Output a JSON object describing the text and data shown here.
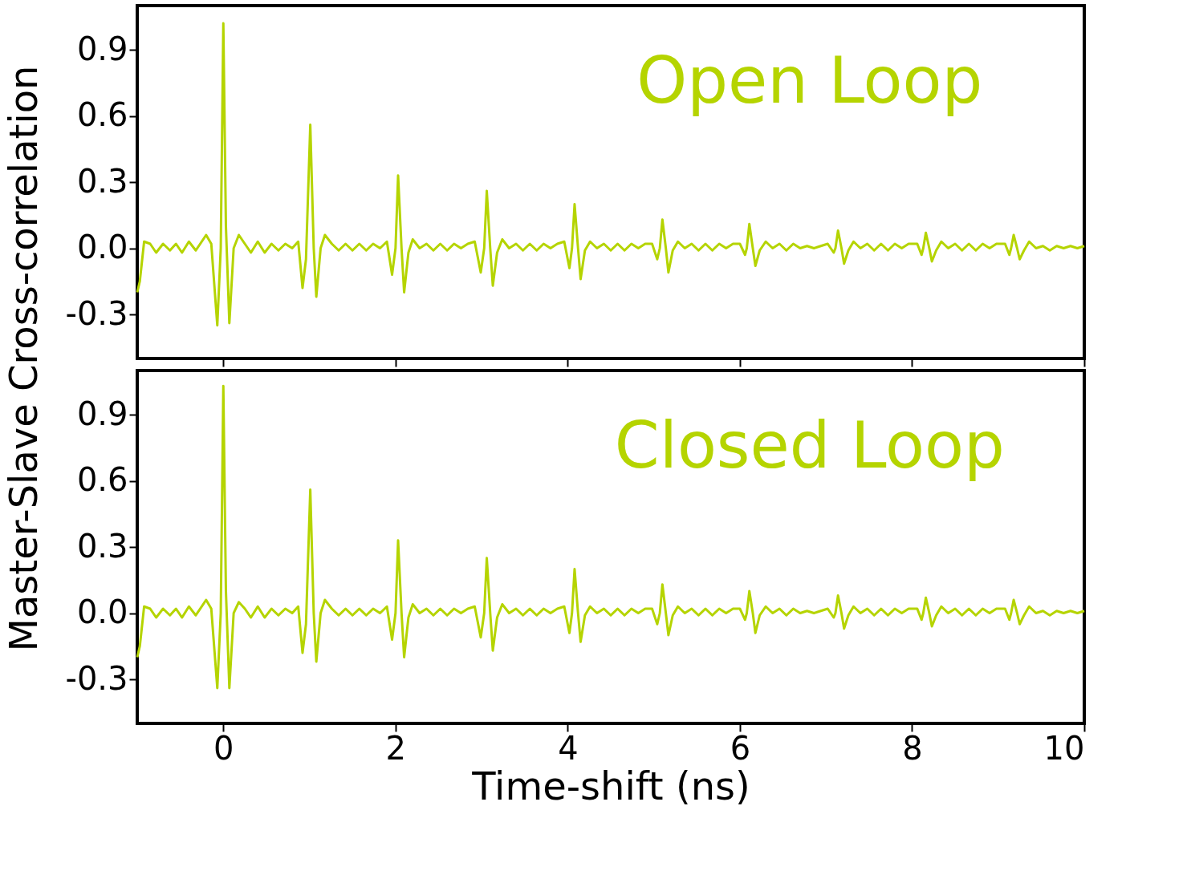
{
  "chart_data": [
    {
      "type": "line",
      "ylabel": "Master-Slave Cross-correlation",
      "annotations": [
        "Open Loop"
      ],
      "tick_labels": "y",
      "grid": false,
      "xlim": [
        -1,
        10
      ],
      "xticks": [
        0,
        2,
        4,
        6,
        8,
        10
      ],
      "ylim": [
        -0.5,
        1.1
      ],
      "yticks": [
        -0.3,
        {
          "value": 0,
          "label": "0.0"
        },
        0.3,
        0.6,
        0.9
      ],
      "x": [
        -1.0,
        -0.97,
        -0.92,
        -0.85,
        -0.78,
        -0.7,
        -0.62,
        -0.55,
        -0.48,
        -0.4,
        -0.32,
        -0.2,
        -0.14,
        -0.07,
        -0.03,
        0.0,
        0.03,
        0.07,
        0.12,
        0.18,
        0.25,
        0.32,
        0.4,
        0.48,
        0.56,
        0.64,
        0.72,
        0.8,
        0.87,
        0.92,
        0.96,
        1.01,
        1.05,
        1.08,
        1.13,
        1.18,
        1.26,
        1.34,
        1.42,
        1.5,
        1.58,
        1.66,
        1.74,
        1.82,
        1.9,
        1.96,
        2.0,
        2.03,
        2.07,
        2.1,
        2.15,
        2.2,
        2.28,
        2.36,
        2.44,
        2.52,
        2.6,
        2.68,
        2.76,
        2.84,
        2.92,
        2.99,
        3.03,
        3.06,
        3.1,
        3.13,
        3.18,
        3.24,
        3.32,
        3.4,
        3.48,
        3.56,
        3.64,
        3.72,
        3.8,
        3.88,
        3.96,
        4.02,
        4.05,
        4.08,
        4.12,
        4.15,
        4.2,
        4.26,
        4.34,
        4.42,
        4.5,
        4.58,
        4.66,
        4.74,
        4.82,
        4.9,
        4.98,
        5.04,
        5.07,
        5.1,
        5.14,
        5.17,
        5.22,
        5.28,
        5.36,
        5.44,
        5.52,
        5.6,
        5.68,
        5.76,
        5.84,
        5.92,
        6.0,
        6.06,
        6.08,
        6.11,
        6.15,
        6.18,
        6.23,
        6.3,
        6.38,
        6.46,
        6.54,
        6.62,
        6.7,
        6.78,
        6.86,
        6.94,
        7.02,
        7.09,
        7.11,
        7.14,
        7.18,
        7.21,
        7.26,
        7.32,
        7.4,
        7.48,
        7.56,
        7.64,
        7.72,
        7.8,
        7.88,
        7.96,
        8.06,
        8.11,
        8.13,
        8.16,
        8.2,
        8.23,
        8.28,
        8.34,
        8.42,
        8.5,
        8.58,
        8.66,
        8.74,
        8.82,
        8.9,
        8.98,
        9.08,
        9.13,
        9.15,
        9.18,
        9.22,
        9.25,
        9.3,
        9.36,
        9.44,
        9.52,
        9.6,
        9.68,
        9.76,
        9.84,
        9.92,
        10.0
      ],
      "series": [
        {
          "color": "#b5d400",
          "values": [
            -0.2,
            -0.15,
            0.03,
            0.02,
            -0.02,
            0.02,
            -0.01,
            0.02,
            -0.02,
            0.03,
            -0.01,
            0.06,
            0.02,
            -0.35,
            0.0,
            1.02,
            0.1,
            -0.34,
            0.0,
            0.06,
            0.02,
            -0.02,
            0.03,
            -0.02,
            0.02,
            -0.01,
            0.02,
            0.0,
            0.03,
            -0.18,
            -0.05,
            0.56,
            0.0,
            -0.22,
            0.0,
            0.06,
            0.02,
            -0.01,
            0.02,
            -0.01,
            0.02,
            -0.01,
            0.02,
            0.0,
            0.03,
            -0.12,
            0.0,
            0.33,
            0.0,
            -0.2,
            -0.02,
            0.04,
            0.0,
            0.02,
            -0.01,
            0.02,
            -0.01,
            0.02,
            0.0,
            0.02,
            0.03,
            -0.11,
            0.0,
            0.26,
            0.0,
            -0.17,
            -0.02,
            0.04,
            0.0,
            0.02,
            -0.01,
            0.02,
            -0.01,
            0.02,
            0.0,
            0.02,
            0.03,
            -0.09,
            0.0,
            0.2,
            0.0,
            -0.14,
            -0.01,
            0.03,
            0.0,
            0.02,
            -0.01,
            0.02,
            -0.01,
            0.02,
            0.0,
            0.02,
            0.02,
            -0.05,
            0.0,
            0.13,
            0.0,
            -0.11,
            -0.01,
            0.03,
            0.0,
            0.02,
            -0.01,
            0.02,
            -0.01,
            0.02,
            0.0,
            0.02,
            0.02,
            -0.03,
            0.0,
            0.11,
            0.0,
            -0.08,
            -0.01,
            0.03,
            0.0,
            0.02,
            -0.01,
            0.02,
            0.0,
            0.01,
            0.0,
            0.01,
            0.02,
            -0.02,
            0.0,
            0.08,
            0.0,
            -0.07,
            -0.01,
            0.03,
            0.0,
            0.02,
            -0.01,
            0.02,
            -0.01,
            0.02,
            0.0,
            0.02,
            0.02,
            -0.03,
            0.0,
            0.07,
            0.0,
            -0.06,
            -0.01,
            0.03,
            0.0,
            0.02,
            -0.01,
            0.02,
            -0.01,
            0.02,
            0.0,
            0.02,
            0.02,
            -0.03,
            0.0,
            0.06,
            0.0,
            -0.05,
            -0.01,
            0.03,
            0.0,
            0.01,
            -0.01,
            0.01,
            0.0,
            0.01,
            0.0,
            0.01
          ]
        }
      ]
    },
    {
      "type": "line",
      "xlabel": "Time-shift (ns)",
      "annotations": [
        "Closed Loop"
      ],
      "grid": false,
      "xlim": [
        -1,
        10
      ],
      "xticks": [
        0,
        2,
        4,
        6,
        8,
        10
      ],
      "ylim": [
        -0.5,
        1.1
      ],
      "yticks": [
        -0.3,
        {
          "value": 0,
          "label": "0.0"
        },
        0.3,
        0.6,
        0.9
      ],
      "x": [
        -1.0,
        -0.97,
        -0.92,
        -0.85,
        -0.78,
        -0.7,
        -0.62,
        -0.55,
        -0.48,
        -0.4,
        -0.32,
        -0.2,
        -0.14,
        -0.07,
        -0.03,
        0.0,
        0.03,
        0.07,
        0.12,
        0.18,
        0.25,
        0.32,
        0.4,
        0.48,
        0.56,
        0.64,
        0.72,
        0.8,
        0.87,
        0.92,
        0.96,
        1.01,
        1.05,
        1.08,
        1.13,
        1.18,
        1.26,
        1.34,
        1.42,
        1.5,
        1.58,
        1.66,
        1.74,
        1.82,
        1.9,
        1.96,
        2.0,
        2.03,
        2.07,
        2.1,
        2.15,
        2.2,
        2.28,
        2.36,
        2.44,
        2.52,
        2.6,
        2.68,
        2.76,
        2.84,
        2.92,
        2.99,
        3.03,
        3.06,
        3.1,
        3.13,
        3.18,
        3.24,
        3.32,
        3.4,
        3.48,
        3.56,
        3.64,
        3.72,
        3.8,
        3.88,
        3.96,
        4.02,
        4.05,
        4.08,
        4.12,
        4.15,
        4.2,
        4.26,
        4.34,
        4.42,
        4.5,
        4.58,
        4.66,
        4.74,
        4.82,
        4.9,
        4.98,
        5.04,
        5.07,
        5.1,
        5.14,
        5.17,
        5.22,
        5.28,
        5.36,
        5.44,
        5.52,
        5.6,
        5.68,
        5.76,
        5.84,
        5.92,
        6.0,
        6.06,
        6.08,
        6.11,
        6.15,
        6.18,
        6.23,
        6.3,
        6.38,
        6.46,
        6.54,
        6.62,
        6.7,
        6.78,
        6.86,
        6.94,
        7.02,
        7.09,
        7.11,
        7.14,
        7.18,
        7.21,
        7.26,
        7.32,
        7.4,
        7.48,
        7.56,
        7.64,
        7.72,
        7.8,
        7.88,
        7.96,
        8.06,
        8.11,
        8.13,
        8.16,
        8.2,
        8.23,
        8.28,
        8.34,
        8.42,
        8.5,
        8.58,
        8.66,
        8.74,
        8.82,
        8.9,
        8.98,
        9.08,
        9.13,
        9.15,
        9.18,
        9.22,
        9.25,
        9.3,
        9.36,
        9.44,
        9.52,
        9.6,
        9.68,
        9.76,
        9.84,
        9.92,
        10.0
      ],
      "series": [
        {
          "color": "#b5d400",
          "values": [
            -0.2,
            -0.15,
            0.03,
            0.02,
            -0.02,
            0.02,
            -0.01,
            0.02,
            -0.02,
            0.03,
            -0.01,
            0.06,
            0.02,
            -0.34,
            0.0,
            1.03,
            0.1,
            -0.34,
            0.0,
            0.05,
            0.02,
            -0.02,
            0.03,
            -0.02,
            0.02,
            -0.01,
            0.02,
            0.0,
            0.03,
            -0.18,
            -0.05,
            0.56,
            0.0,
            -0.22,
            0.0,
            0.06,
            0.02,
            -0.01,
            0.02,
            -0.01,
            0.02,
            -0.01,
            0.02,
            0.0,
            0.03,
            -0.12,
            0.0,
            0.33,
            0.0,
            -0.2,
            -0.02,
            0.04,
            0.0,
            0.02,
            -0.01,
            0.02,
            -0.01,
            0.02,
            0.0,
            0.02,
            0.03,
            -0.11,
            0.0,
            0.25,
            0.0,
            -0.17,
            -0.02,
            0.04,
            0.0,
            0.02,
            -0.01,
            0.02,
            -0.01,
            0.02,
            0.0,
            0.02,
            0.03,
            -0.09,
            0.0,
            0.2,
            0.0,
            -0.13,
            -0.01,
            0.03,
            0.0,
            0.02,
            -0.01,
            0.02,
            -0.01,
            0.02,
            0.0,
            0.02,
            0.02,
            -0.05,
            0.0,
            0.13,
            0.0,
            -0.1,
            -0.01,
            0.03,
            0.0,
            0.02,
            -0.01,
            0.02,
            -0.01,
            0.02,
            0.0,
            0.02,
            0.02,
            -0.03,
            0.0,
            0.1,
            0.0,
            -0.09,
            -0.01,
            0.03,
            0.0,
            0.02,
            -0.01,
            0.02,
            0.0,
            0.01,
            0.0,
            0.01,
            0.02,
            -0.02,
            0.0,
            0.08,
            0.0,
            -0.07,
            -0.01,
            0.03,
            0.0,
            0.02,
            -0.01,
            0.02,
            -0.01,
            0.02,
            0.0,
            0.02,
            0.02,
            -0.03,
            0.0,
            0.07,
            0.0,
            -0.06,
            -0.01,
            0.03,
            0.0,
            0.02,
            -0.01,
            0.02,
            -0.01,
            0.02,
            0.0,
            0.02,
            0.02,
            -0.03,
            0.0,
            0.06,
            0.0,
            -0.05,
            -0.01,
            0.03,
            0.0,
            0.01,
            -0.01,
            0.01,
            0.0,
            0.01,
            0.0,
            0.01
          ]
        }
      ]
    }
  ]
}
